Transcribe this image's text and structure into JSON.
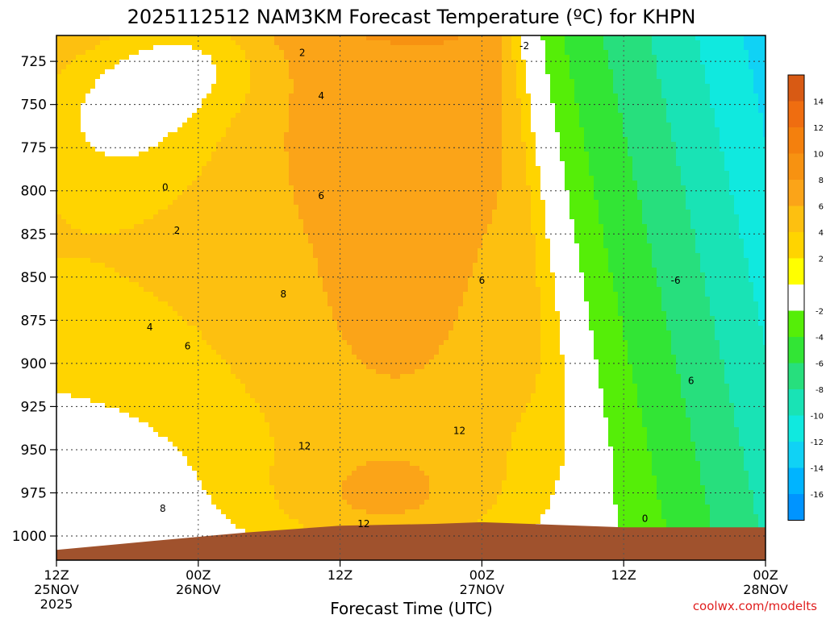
{
  "chart_data": {
    "type": "heatmap",
    "title": "2025112512 NAM3KM Forecast Temperature (ºC) for KHPN",
    "xlabel": "Forecast Time (UTC)",
    "ylabel": "",
    "y_ticks": [
      "725",
      "750",
      "775",
      "800",
      "825",
      "850",
      "875",
      "900",
      "925",
      "950",
      "975",
      "1000"
    ],
    "y_values": [
      725,
      750,
      775,
      800,
      825,
      850,
      875,
      900,
      925,
      950,
      975,
      1000
    ],
    "y_range_hpa": [
      710,
      1014
    ],
    "x_ticks": [
      {
        "hour": 0,
        "line1": "12Z",
        "line2": "25NOV",
        "line3": "2025"
      },
      {
        "hour": 12,
        "line1": "00Z",
        "line2": "26NOV",
        "line3": ""
      },
      {
        "hour": 24,
        "line1": "12Z",
        "line2": "",
        "line3": ""
      },
      {
        "hour": 36,
        "line1": "00Z",
        "line2": "27NOV",
        "line3": ""
      },
      {
        "hour": 48,
        "line1": "12Z",
        "line2": "",
        "line3": ""
      },
      {
        "hour": 60,
        "line1": "00Z",
        "line2": "28NOV",
        "line3": ""
      }
    ],
    "x_range_hours": [
      0,
      60
    ],
    "colorbar": {
      "labels": [
        "14",
        "12",
        "10",
        "8",
        "6",
        "4",
        "2",
        "-2",
        "-4",
        "-6",
        "-8",
        "-10",
        "-12",
        "-14",
        "-16"
      ],
      "colors": [
        "#d85a14",
        "#ef6d10",
        "#f4800d",
        "#f79211",
        "#fba418",
        "#fdc010",
        "#ffd400",
        "#ffff00",
        "#ffffff",
        "#55ee08",
        "#32e535",
        "#27df7d",
        "#19e3b5",
        "#10e9df",
        "#10d2f5",
        "#00b4ff",
        "#0094ff"
      ]
    },
    "contour_labels": [
      {
        "text": "2",
        "hour": 10.2,
        "hpa": 823
      },
      {
        "text": "4",
        "hour": 7.9,
        "hpa": 879
      },
      {
        "text": "6",
        "hour": 11.1,
        "hpa": 890
      },
      {
        "text": "8",
        "hour": 9.0,
        "hpa": 984
      },
      {
        "text": "0",
        "hour": 9.2,
        "hpa": 798
      },
      {
        "text": "2",
        "hour": 20.8,
        "hpa": 720
      },
      {
        "text": "4",
        "hour": 22.4,
        "hpa": 745
      },
      {
        "text": "6",
        "hour": 22.4,
        "hpa": 803
      },
      {
        "text": "8",
        "hour": 19.2,
        "hpa": 860
      },
      {
        "text": "12",
        "hour": 21.0,
        "hpa": 948
      },
      {
        "text": "12",
        "hour": 26.0,
        "hpa": 993
      },
      {
        "text": "12",
        "hour": 34.1,
        "hpa": 939
      },
      {
        "text": "6",
        "hour": 36.0,
        "hpa": 852
      },
      {
        "text": "-2",
        "hour": 39.6,
        "hpa": 716
      },
      {
        "text": "-6",
        "hour": 52.4,
        "hpa": 852
      },
      {
        "text": "6",
        "hour": 53.7,
        "hpa": 910
      },
      {
        "text": "0",
        "hour": 49.8,
        "hpa": 990
      }
    ],
    "terrain_note": "model ground surface shown near 1000-1010 hPa"
  },
  "credit": "coolwx.com/modelts"
}
